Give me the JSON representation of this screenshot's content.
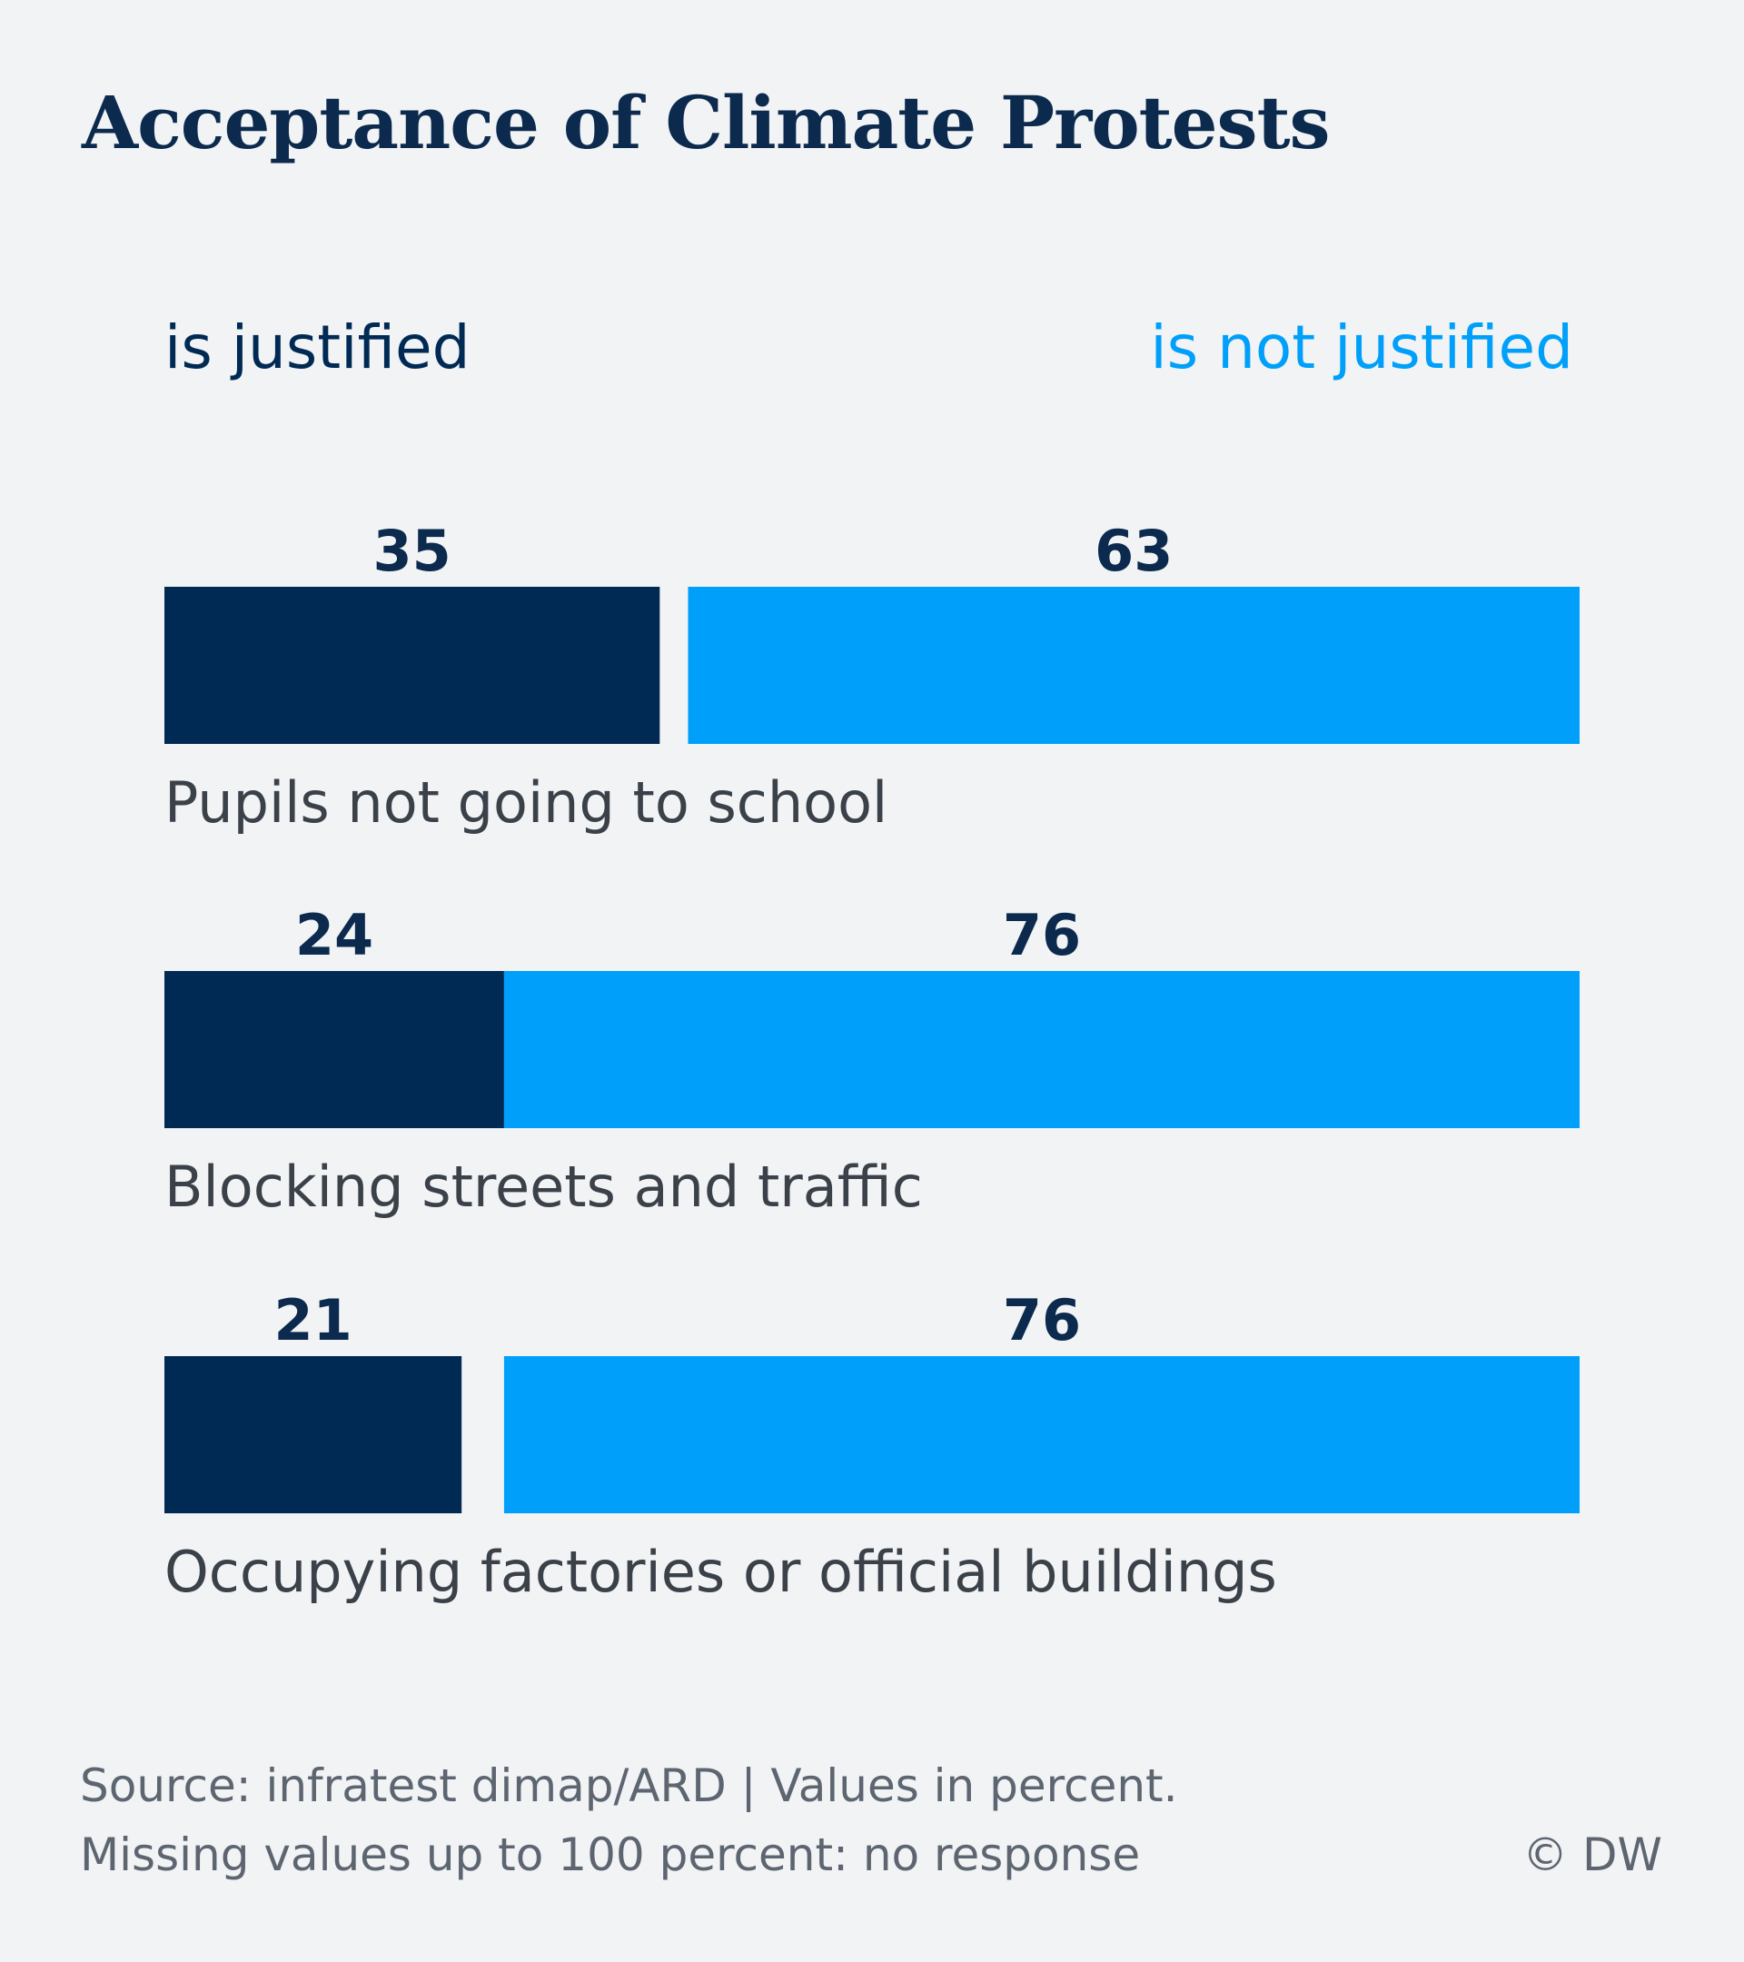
{
  "colors": {
    "background": "#f1f3f5",
    "title": "#0c2a4d",
    "justified": "#002a54",
    "not_justified": "#00a0fa",
    "value_label": "#0c2a4d",
    "category_label": "#3a4149",
    "footer": "#5d6570"
  },
  "chart_data": {
    "type": "bar",
    "orientation": "horizontal-stacked",
    "title": "Acceptance of Climate Protests",
    "categories": [
      "Pupils not going to school",
      "Blocking streets and traffic",
      "Occupying factories or official buildings"
    ],
    "series": [
      {
        "name": "is justified",
        "values": [
          35,
          24,
          21
        ]
      },
      {
        "name": "is not justified",
        "values": [
          63,
          76,
          76
        ]
      }
    ],
    "xlim": [
      0,
      100
    ],
    "unit": "percent",
    "legend_placement": "top",
    "grid": false
  },
  "footer": {
    "source": "Source: infratest dimap/ARD | Values in percent.",
    "note": "Missing values up to 100 percent: no response",
    "copyright": "© DW"
  }
}
